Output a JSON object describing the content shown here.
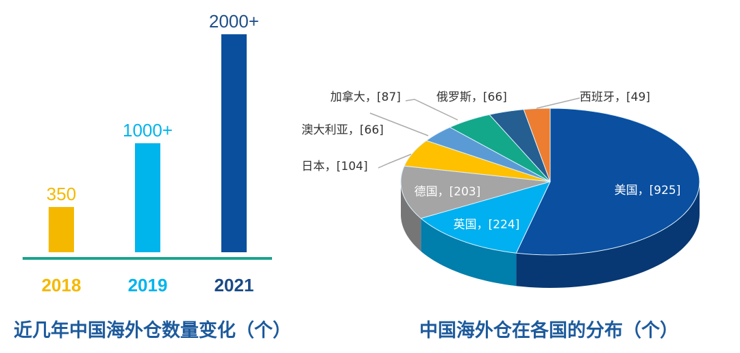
{
  "chart_data": [
    {
      "type": "bar",
      "title": "近几年中国海外仓数量变化（个）",
      "categories": [
        "2018",
        "2019",
        "2021"
      ],
      "values": [
        350,
        1000,
        2000
      ],
      "data_labels": [
        "350",
        "1000+",
        "2000+"
      ],
      "colors": [
        "#f5b800",
        "#00b4ec",
        "#0a4f9e"
      ],
      "axis_color": "#1aa38c",
      "grid": false
    },
    {
      "type": "pie",
      "style": "3d",
      "title": "中国海外仓在各国的分布（个）",
      "slices": [
        {
          "label": "美国",
          "value": 925,
          "text": "美国，[925]",
          "color": "#0a4fa0"
        },
        {
          "label": "英国",
          "value": 224,
          "text": "英国，[224]",
          "color": "#00b0f0"
        },
        {
          "label": "德国",
          "value": 203,
          "text": "德国，[203]",
          "color": "#a5a5a5"
        },
        {
          "label": "日本",
          "value": 104,
          "text": "日本，[104]",
          "color": "#ffc000"
        },
        {
          "label": "澳大利亚",
          "value": 66,
          "text": "澳大利亚，[66]",
          "color": "#5b9bd5"
        },
        {
          "label": "加拿大",
          "value": 87,
          "text": "加拿大，[87]",
          "color": "#13a88a"
        },
        {
          "label": "俄罗斯",
          "value": 66,
          "text": "俄罗斯，[66]",
          "color": "#255e91"
        },
        {
          "label": "西班牙",
          "value": 49,
          "text": "西班牙，[49]",
          "color": "#ed7d31"
        }
      ]
    }
  ]
}
